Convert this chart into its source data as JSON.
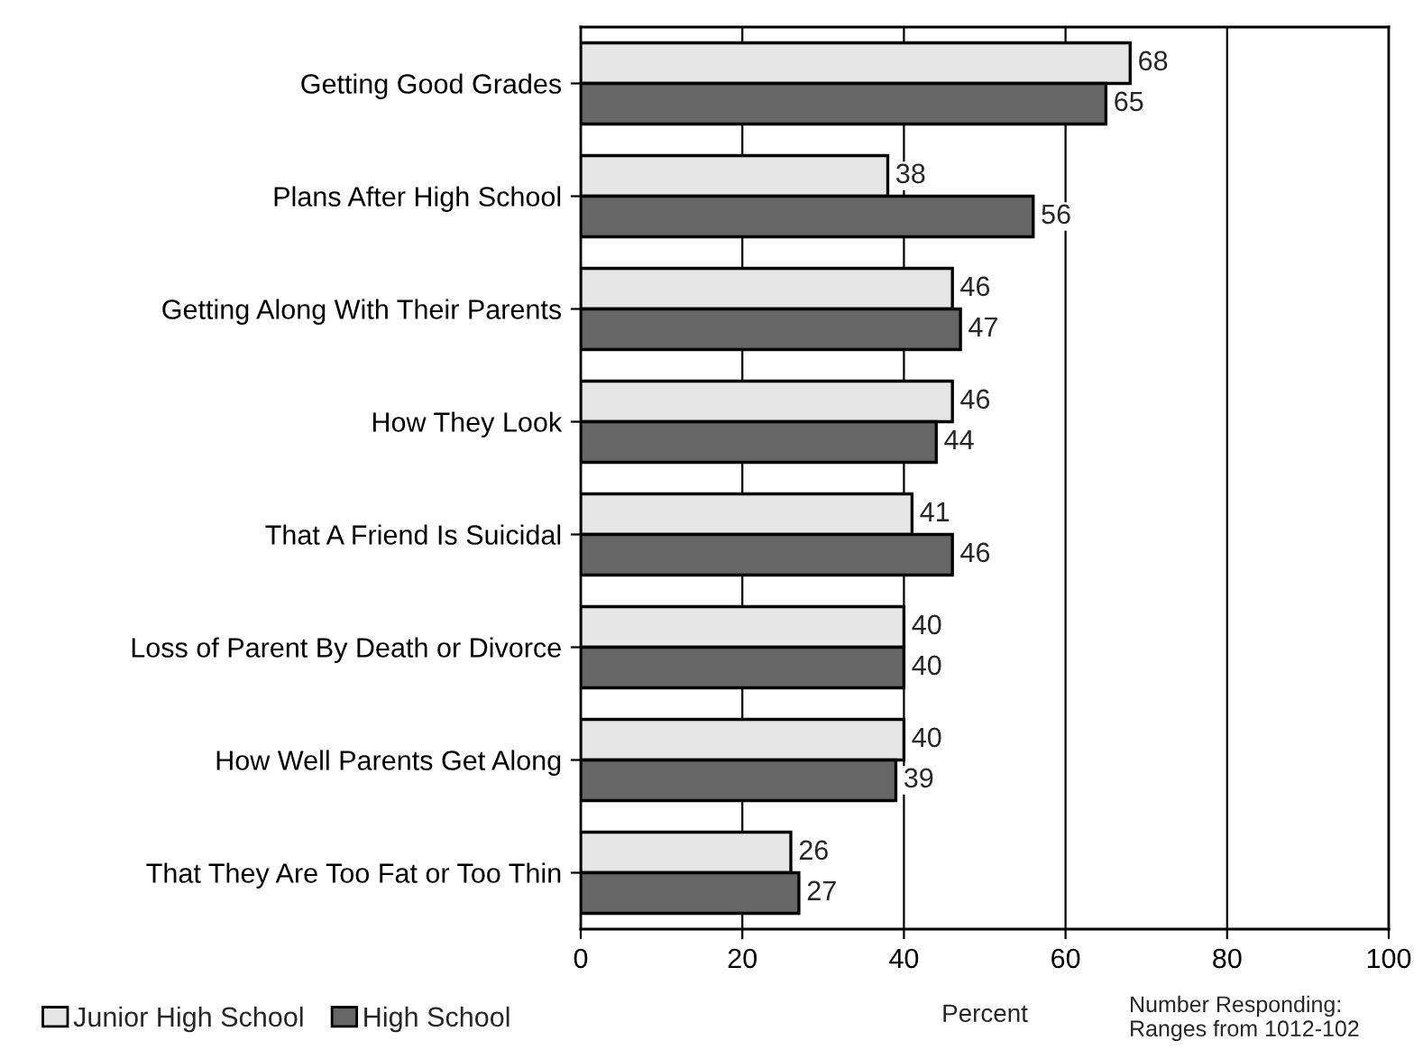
{
  "chart_data": {
    "type": "bar",
    "orientation": "horizontal",
    "xlabel": "Percent",
    "categories": [
      "Getting Good Grades",
      "Plans After High School",
      "Getting Along With Their Parents",
      "How They Look",
      "That A Friend Is Suicidal",
      "Loss of Parent By Death or Divorce",
      "How Well Parents Get Along",
      "That They Are Too Fat or Too Thin"
    ],
    "series": [
      {
        "name": "Junior High School",
        "color": "#e6e6e6",
        "values": [
          68,
          38,
          46,
          46,
          41,
          40,
          40,
          26
        ]
      },
      {
        "name": "High School",
        "color": "#666666",
        "values": [
          65,
          56,
          47,
          44,
          46,
          40,
          39,
          27
        ]
      }
    ],
    "xlim": [
      0,
      100
    ],
    "xticks": [
      0,
      20,
      40,
      60,
      80,
      100
    ],
    "grid": "x",
    "legend": "bottom left",
    "data_labels": true,
    "annotations": [
      "Number Responding:\nRanges from 1012-102"
    ]
  }
}
